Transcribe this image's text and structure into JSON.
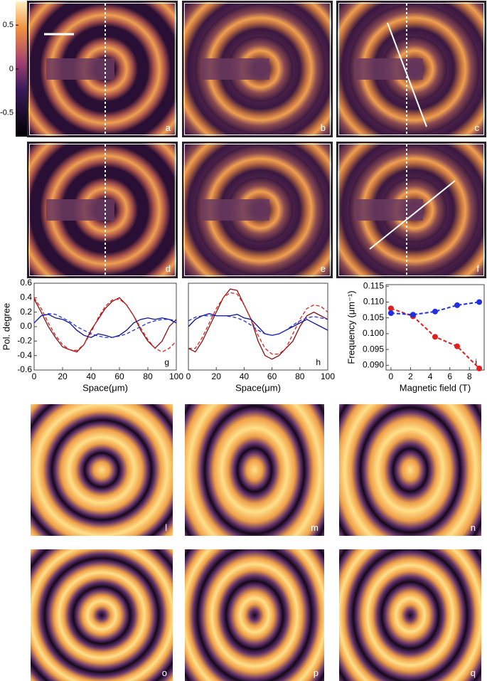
{
  "colorbar": {
    "clim": [
      -0.77,
      0.77
    ],
    "ticks": [
      0.5,
      0,
      -0.5
    ]
  },
  "panels_top": [
    "a",
    "b",
    "c",
    "d",
    "e",
    "f"
  ],
  "panels_bottom": [
    "l",
    "m",
    "n",
    "o",
    "p",
    "q"
  ],
  "chart_data": [
    {
      "type": "line",
      "label": "g",
      "xlabel": "Space(μm)",
      "ylabel": "Pol. degree",
      "xlim": [
        0,
        100
      ],
      "ylim": [
        -0.6,
        0.6
      ],
      "xticks": [
        0,
        20,
        40,
        60,
        80,
        100
      ],
      "yticks": [
        0.6,
        0.4,
        0.2,
        {
          "value": 0,
          "label": "0.0"
        },
        -0.2,
        -0.4,
        -0.6
      ],
      "x": [
        0,
        5,
        10,
        15,
        20,
        25,
        30,
        35,
        40,
        45,
        50,
        55,
        60,
        65,
        70,
        75,
        80,
        85,
        90,
        95,
        100
      ],
      "series": [
        {
          "color": "#8b1010",
          "linestyle": "solid",
          "values": [
            0.38,
            0.2,
            0,
            -0.15,
            -0.28,
            -0.32,
            -0.35,
            -0.25,
            -0.05,
            0.1,
            0.25,
            0.35,
            0.4,
            0.3,
            0.15,
            -0.05,
            -0.2,
            -0.3,
            -0.2,
            0,
            0.1
          ]
        },
        {
          "color": "#e02020",
          "linestyle": "dashed",
          "values": [
            0.4,
            0.25,
            0.05,
            -0.12,
            -0.25,
            -0.32,
            -0.33,
            -0.25,
            -0.08,
            0.12,
            0.28,
            0.37,
            0.38,
            0.3,
            0.15,
            -0.02,
            -0.18,
            -0.3,
            -0.35,
            -0.3,
            -0.2
          ]
        },
        {
          "color": "#10108b",
          "linestyle": "solid",
          "values": [
            0.05,
            0.15,
            0.17,
            0.12,
            0.1,
            0.05,
            -0.05,
            -0.12,
            -0.15,
            -0.1,
            -0.12,
            -0.15,
            -0.12,
            -0.05,
            0.05,
            0.1,
            0.12,
            0.1,
            0.12,
            0.1,
            0.05
          ]
        },
        {
          "color": "#2030e0",
          "linestyle": "dashed",
          "values": [
            0.05,
            0.15,
            0.18,
            0.17,
            0.12,
            0.07,
            0,
            -0.05,
            -0.1,
            -0.13,
            -0.15,
            -0.15,
            -0.13,
            -0.1,
            -0.05,
            0,
            0.05,
            0.08,
            0.1,
            0.1,
            0.08
          ]
        }
      ]
    },
    {
      "type": "line",
      "label": "h",
      "xlabel": "Space(μm)",
      "xlim": [
        0,
        100
      ],
      "ylim": [
        -0.6,
        0.6
      ],
      "xticks": [
        0,
        20,
        40,
        60,
        80,
        100
      ],
      "x": [
        0,
        5,
        10,
        15,
        20,
        25,
        30,
        35,
        40,
        45,
        50,
        55,
        60,
        65,
        70,
        75,
        80,
        85,
        90,
        95,
        100
      ],
      "series": [
        {
          "color": "#8b1010",
          "linestyle": "solid",
          "values": [
            -0.3,
            -0.35,
            -0.2,
            0,
            0.2,
            0.4,
            0.52,
            0.5,
            0.3,
            0.1,
            -0.2,
            -0.4,
            -0.45,
            -0.4,
            -0.3,
            -0.2,
            0,
            0.15,
            0.2,
            0.15,
            0.1
          ]
        },
        {
          "color": "#e02020",
          "linestyle": "dashed",
          "values": [
            -0.3,
            -0.3,
            -0.15,
            0.05,
            0.25,
            0.4,
            0.47,
            0.45,
            0.3,
            0.1,
            -0.12,
            -0.3,
            -0.38,
            -0.38,
            -0.3,
            -0.1,
            0.1,
            0.25,
            0.3,
            0.28,
            0.2
          ]
        },
        {
          "color": "#10108b",
          "linestyle": "solid",
          "values": [
            0,
            0.1,
            0.15,
            0.18,
            0.15,
            0.15,
            0.15,
            0.17,
            0.12,
            0.1,
            0,
            -0.1,
            -0.12,
            -0.1,
            -0.05,
            0,
            0.05,
            0.1,
            0.05,
            0,
            -0.05
          ]
        },
        {
          "color": "#2030e0",
          "linestyle": "dashed",
          "values": [
            0.08,
            0.13,
            0.15,
            0.15,
            0.15,
            0.15,
            0.14,
            0.12,
            0.08,
            0.02,
            -0.05,
            -0.1,
            -0.12,
            -0.1,
            -0.05,
            0.02,
            0.08,
            0.12,
            0.14,
            0.12,
            0.1
          ]
        }
      ]
    },
    {
      "type": "scatter",
      "label": "i",
      "xlabel": "Magnetic field (T)",
      "ylabel": "Frequency (μm⁻¹)",
      "xlim": [
        -0.5,
        9.5
      ],
      "ylim": [
        0.0885,
        0.1155
      ],
      "xticks": [
        0,
        2,
        4,
        6,
        8
      ],
      "yticks": [
        {
          "value": 0.09,
          "label": "0.090"
        },
        {
          "value": 0.095,
          "label": "0.095"
        },
        {
          "value": 0.1,
          "label": "0.100"
        },
        {
          "value": 0.105,
          "label": "0.105"
        },
        {
          "value": 0.11,
          "label": "0.110"
        },
        {
          "value": 0.115,
          "label": "0.115"
        }
      ],
      "x": [
        0,
        2.25,
        4.5,
        6.75,
        9
      ],
      "series": [
        {
          "color": "#e02020",
          "linestyle": "dashed",
          "values": [
            0.108,
            0.1055,
            0.099,
            0.096,
            0.089
          ]
        },
        {
          "color": "#2030e0",
          "linestyle": "dashed",
          "values": [
            0.1065,
            0.106,
            0.107,
            0.109,
            0.11
          ]
        }
      ]
    }
  ]
}
